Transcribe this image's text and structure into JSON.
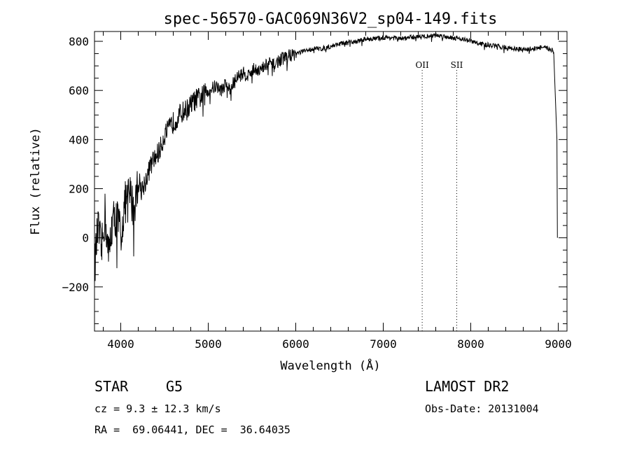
{
  "chart_data": {
    "type": "line",
    "title": "spec-56570-GAC069N36V2_sp04-149.fits",
    "xlabel": "Wavelength (Å)",
    "ylabel": "Flux (relative)",
    "xlim": [
      3700,
      9100
    ],
    "ylim": [
      -380,
      840
    ],
    "xticks": [
      4000,
      5000,
      6000,
      7000,
      8000,
      9000
    ],
    "yticks": [
      -200,
      0,
      200,
      400,
      600,
      800
    ],
    "grid": false,
    "series": [
      {
        "color": "#000000",
        "x": [
          3700,
          3740,
          3780,
          3820,
          3860,
          3900,
          3950,
          4000,
          4050,
          4100,
          4150,
          4200,
          4250,
          4300,
          4350,
          4400,
          4450,
          4500,
          4550,
          4600,
          4650,
          4700,
          4750,
          4800,
          4850,
          4900,
          4950,
          5000,
          5050,
          5100,
          5150,
          5200,
          5250,
          5300,
          5350,
          5400,
          5450,
          5500,
          5550,
          5600,
          5650,
          5700,
          5750,
          5800,
          5850,
          5900,
          5950,
          6000,
          6100,
          6200,
          6300,
          6400,
          6500,
          6600,
          6700,
          6800,
          6900,
          7000,
          7100,
          7200,
          7300,
          7400,
          7500,
          7600,
          7700,
          7800,
          7900,
          8000,
          8100,
          8200,
          8300,
          8400,
          8500,
          8600,
          8700,
          8800,
          8900,
          8950,
          8990
        ],
        "y": [
          -120,
          40,
          -60,
          100,
          -80,
          60,
          90,
          20,
          140,
          180,
          120,
          230,
          200,
          250,
          300,
          330,
          360,
          420,
          440,
          470,
          490,
          510,
          520,
          540,
          560,
          570,
          580,
          600,
          610,
          620,
          600,
          630,
          600,
          640,
          660,
          670,
          660,
          680,
          690,
          680,
          700,
          710,
          700,
          720,
          730,
          740,
          745,
          750,
          760,
          770,
          770,
          780,
          790,
          795,
          800,
          810,
          810,
          815,
          815,
          810,
          815,
          820,
          820,
          825,
          820,
          815,
          810,
          800,
          790,
          785,
          780,
          775,
          770,
          765,
          770,
          775,
          770,
          760,
          0
        ]
      }
    ],
    "annotations": [
      {
        "label": "OII",
        "x": 7445
      },
      {
        "label": "SII",
        "x": 7840
      }
    ]
  },
  "info": {
    "object_type": "STAR",
    "subclass": "G5",
    "survey": "LAMOST DR2",
    "cz_text": "cz = 9.3 ± 12.3 km/s",
    "obs_date": "Obs-Date: 20131004",
    "coords_text": "RA =  69.06441, DEC =  36.64035"
  }
}
